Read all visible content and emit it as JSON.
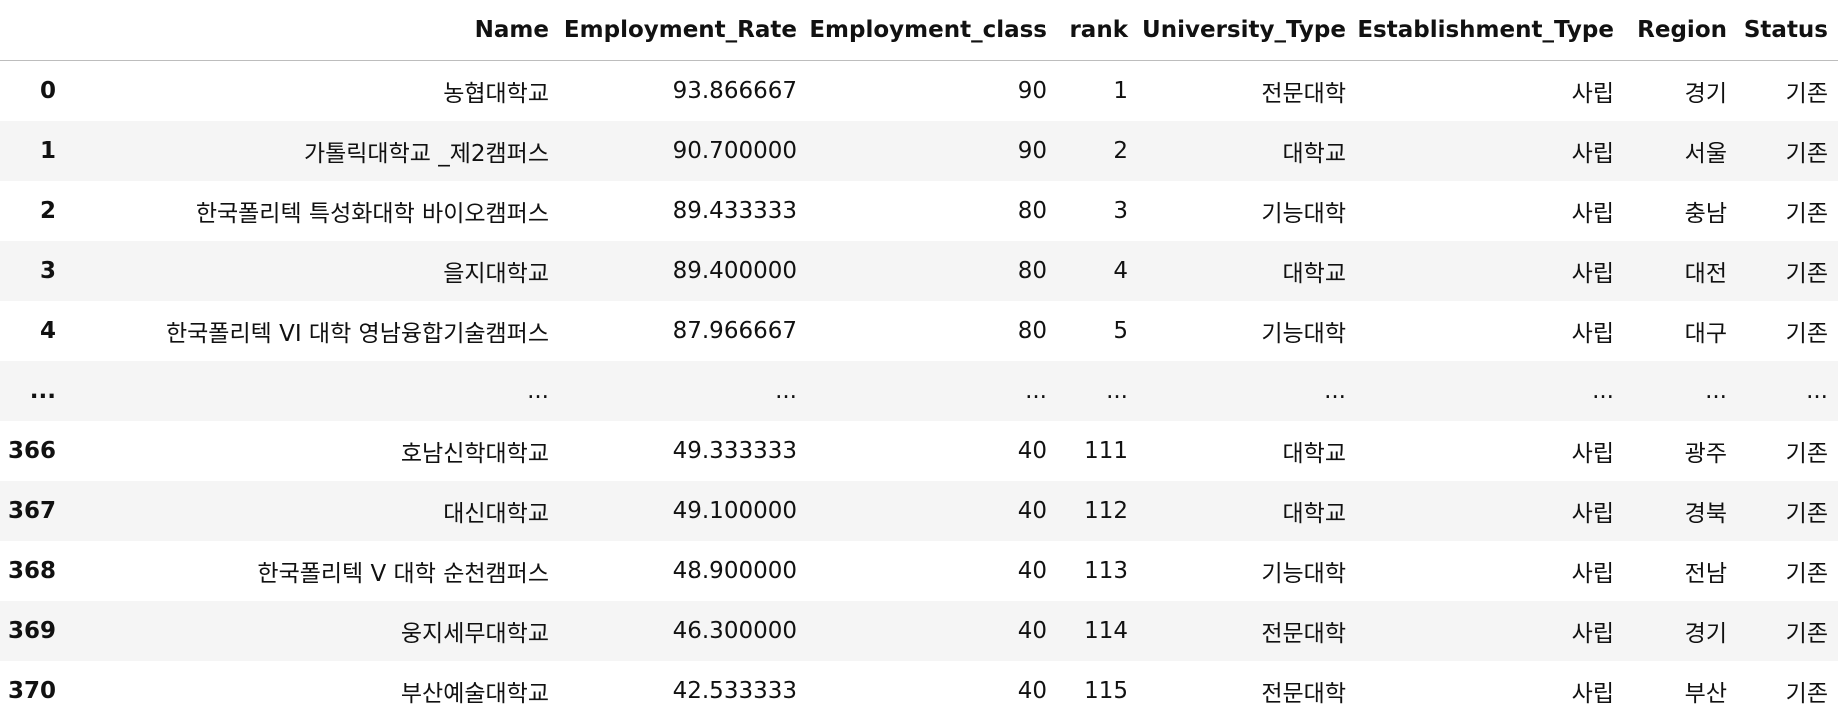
{
  "table": {
    "columns": [
      "",
      "Name",
      "Employment_Rate",
      "Employment_class",
      "rank",
      "University_Type",
      "Establishment_Type",
      "Region",
      "Status"
    ],
    "rows": [
      [
        "0",
        "농협대학교",
        "93.866667",
        "90",
        "1",
        "전문대학",
        "사립",
        "경기",
        "기존"
      ],
      [
        "1",
        "가톨릭대학교 _제2캠퍼스",
        "90.700000",
        "90",
        "2",
        "대학교",
        "사립",
        "서울",
        "기존"
      ],
      [
        "2",
        "한국폴리텍 특성화대학 바이오캠퍼스",
        "89.433333",
        "80",
        "3",
        "기능대학",
        "사립",
        "충남",
        "기존"
      ],
      [
        "3",
        "을지대학교",
        "89.400000",
        "80",
        "4",
        "대학교",
        "사립",
        "대전",
        "기존"
      ],
      [
        "4",
        "한국폴리텍 VI 대학 영남융합기술캠퍼스",
        "87.966667",
        "80",
        "5",
        "기능대학",
        "사립",
        "대구",
        "기존"
      ],
      [
        "...",
        "...",
        "...",
        "...",
        "...",
        "...",
        "...",
        "...",
        "..."
      ],
      [
        "366",
        "호남신학대학교",
        "49.333333",
        "40",
        "111",
        "대학교",
        "사립",
        "광주",
        "기존"
      ],
      [
        "367",
        "대신대학교",
        "49.100000",
        "40",
        "112",
        "대학교",
        "사립",
        "경북",
        "기존"
      ],
      [
        "368",
        "한국폴리텍 V 대학 순천캠퍼스",
        "48.900000",
        "40",
        "113",
        "기능대학",
        "사립",
        "전남",
        "기존"
      ],
      [
        "369",
        "웅지세무대학교",
        "46.300000",
        "40",
        "114",
        "전문대학",
        "사립",
        "경기",
        "기존"
      ],
      [
        "370",
        "부산예술대학교",
        "42.533333",
        "40",
        "115",
        "전문대학",
        "사립",
        "부산",
        "기존"
      ]
    ]
  }
}
